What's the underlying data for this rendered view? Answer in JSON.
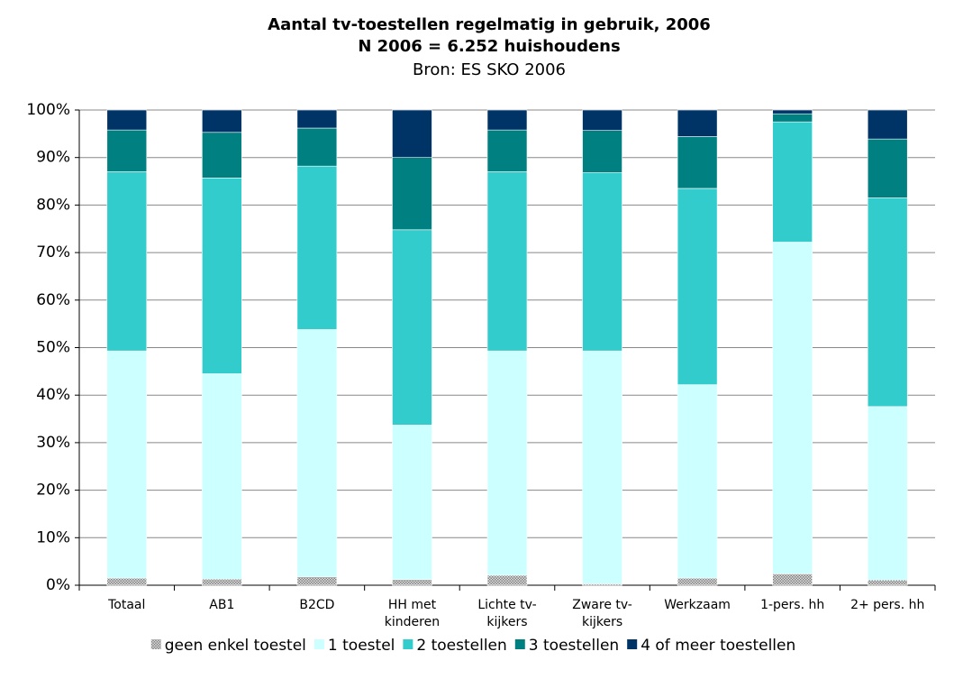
{
  "chart_data": {
    "type": "stacked_bar",
    "title": "Aantal tv-toestellen regelmatig in gebruik, 2006",
    "subtitle": "N 2006 = 6.252 huishoudens",
    "source": "Bron: ES SKO 2006",
    "categories": [
      "Totaal",
      "AB1",
      "B2CD",
      "HH met\nkinderen",
      "Lichte tv-\nkijkers",
      "Zware tv-\nkijkers",
      "Werkzaam",
      "1-pers. hh",
      "2+ pers. hh"
    ],
    "series": [
      {
        "name": "geen enkel toestel",
        "color": "#a6a6a6",
        "values": [
          1.5,
          1.3,
          1.8,
          1.2,
          2.1,
          0.3,
          1.5,
          2.4,
          1.1
        ]
      },
      {
        "name": "1 toestel",
        "color": "#ccffff",
        "values": [
          47.8,
          43.2,
          52,
          32.5,
          47.2,
          49,
          40.7,
          69.8,
          36.5
        ]
      },
      {
        "name": "2 toestellen",
        "color": "#33cccc",
        "values": [
          37.7,
          41.2,
          34.4,
          41.1,
          37.7,
          37.5,
          41.3,
          25.3,
          43.9
        ]
      },
      {
        "name": "3 toestellen",
        "color": "#008080",
        "values": [
          8.8,
          9.6,
          8,
          15.2,
          8.8,
          8.9,
          10.9,
          1.7,
          12.4
        ]
      },
      {
        "name": "4 of meer toestellen",
        "color": "#003366",
        "values": [
          4.2,
          4.7,
          3.8,
          10,
          4.2,
          4.3,
          5.6,
          0.8,
          6.1
        ]
      }
    ],
    "ylim": [
      0,
      100
    ],
    "yticks": [
      {
        "value": 0,
        "label": "0%"
      },
      {
        "value": 10,
        "label": "10%"
      },
      {
        "value": 20,
        "label": "20%"
      },
      {
        "value": 30,
        "label": "30%"
      },
      {
        "value": 40,
        "label": "40%"
      },
      {
        "value": 50,
        "label": "50%"
      },
      {
        "value": 60,
        "label": "60%"
      },
      {
        "value": 70,
        "label": "70%"
      },
      {
        "value": 80,
        "label": "80%"
      },
      {
        "value": 90,
        "label": "90%"
      },
      {
        "value": 100,
        "label": "100%"
      }
    ],
    "grid": true,
    "legend": "bottom"
  }
}
